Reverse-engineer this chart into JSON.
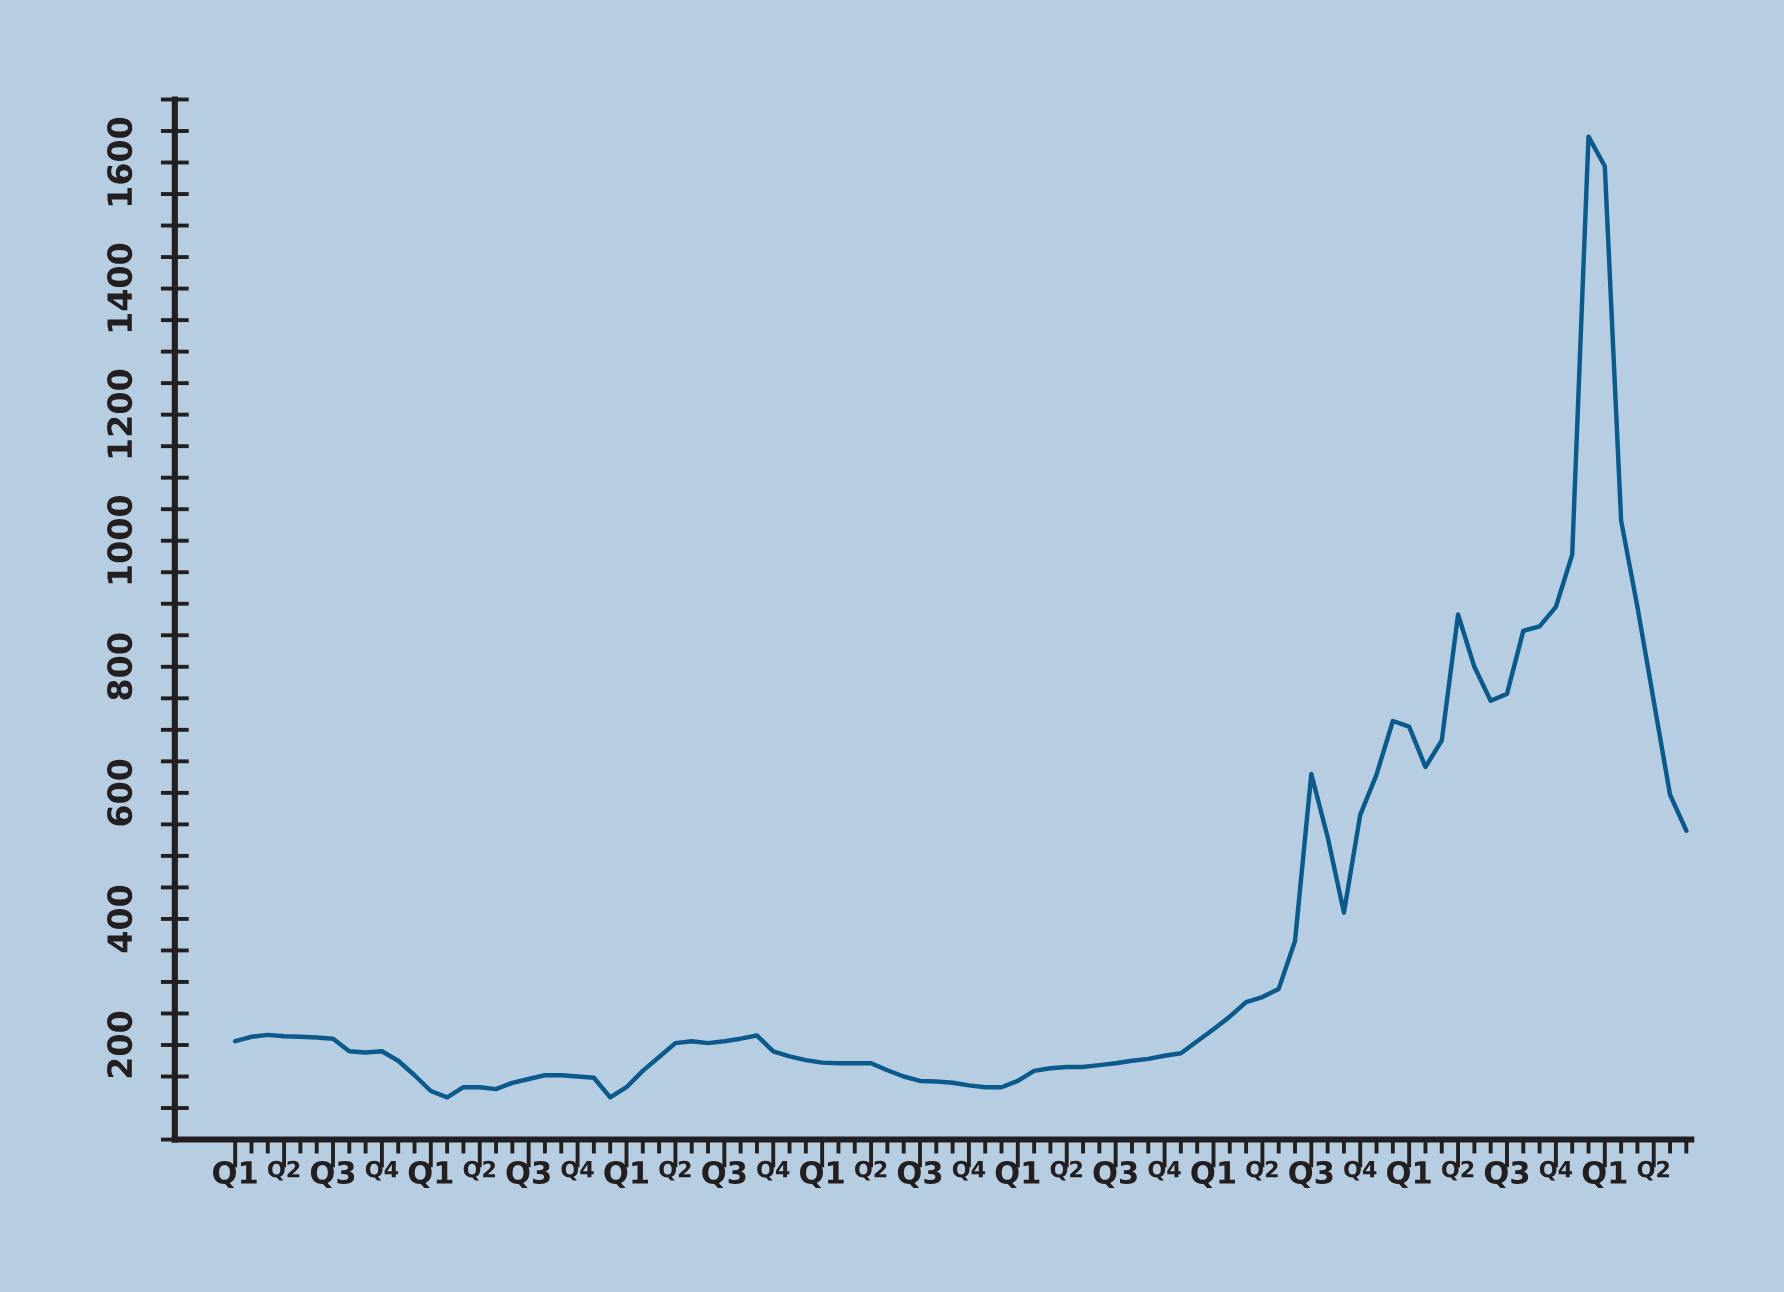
{
  "chart_data": {
    "type": "line",
    "ylim": [
      50,
      1700
    ],
    "categories": [
      "Q1",
      null,
      null,
      "Q2",
      null,
      null,
      "Q3",
      null,
      null,
      "Q4",
      null,
      null,
      "Q1",
      null,
      null,
      "Q2",
      null,
      null,
      "Q3",
      null,
      null,
      "Q4",
      null,
      null,
      "Q1",
      null,
      null,
      "Q2",
      null,
      null,
      "Q3",
      null,
      null,
      "Q4",
      null,
      null,
      "Q1",
      null,
      null,
      "Q2",
      null,
      null,
      "Q3",
      null,
      null,
      "Q4",
      null,
      null,
      "Q1",
      null,
      null,
      "Q2",
      null,
      null,
      "Q3",
      null,
      null,
      "Q4",
      null,
      null,
      "Q1",
      null,
      null,
      "Q2",
      null,
      null,
      "Q3",
      null,
      null,
      "Q4",
      null,
      null,
      "Q1",
      null,
      null,
      "Q2",
      null,
      null,
      "Q3",
      null,
      null,
      "Q4",
      null,
      null,
      "Q1",
      null,
      null,
      "Q2",
      null,
      null
    ],
    "yticks": [
      200,
      400,
      600,
      800,
      1000,
      1200,
      1400,
      1600
    ],
    "grid": false,
    "marker": "none",
    "line_style": "solid",
    "series": [
      {
        "color": "#0b5a8c",
        "values": [
          206,
          213,
          216,
          214,
          213,
          212,
          210,
          190,
          188,
          190,
          175,
          152,
          127,
          117,
          133,
          133,
          130,
          140,
          146,
          152,
          152,
          150,
          148,
          117,
          133,
          159,
          181,
          203,
          206,
          203,
          206,
          210,
          215,
          190,
          182,
          176,
          172,
          171,
          171,
          171,
          160,
          150,
          143,
          142,
          140,
          136,
          133,
          133,
          143,
          159,
          163,
          165,
          165,
          168,
          171,
          175,
          178,
          183,
          187,
          206,
          225,
          245,
          268,
          276,
          289,
          365,
          630,
          530,
          410,
          565,
          629,
          714,
          705,
          641,
          683,
          883,
          800,
          746,
          757,
          857,
          864,
          895,
          978,
          1641,
          1594,
          1032,
          895,
          746,
          597,
          540
        ]
      }
    ]
  }
}
